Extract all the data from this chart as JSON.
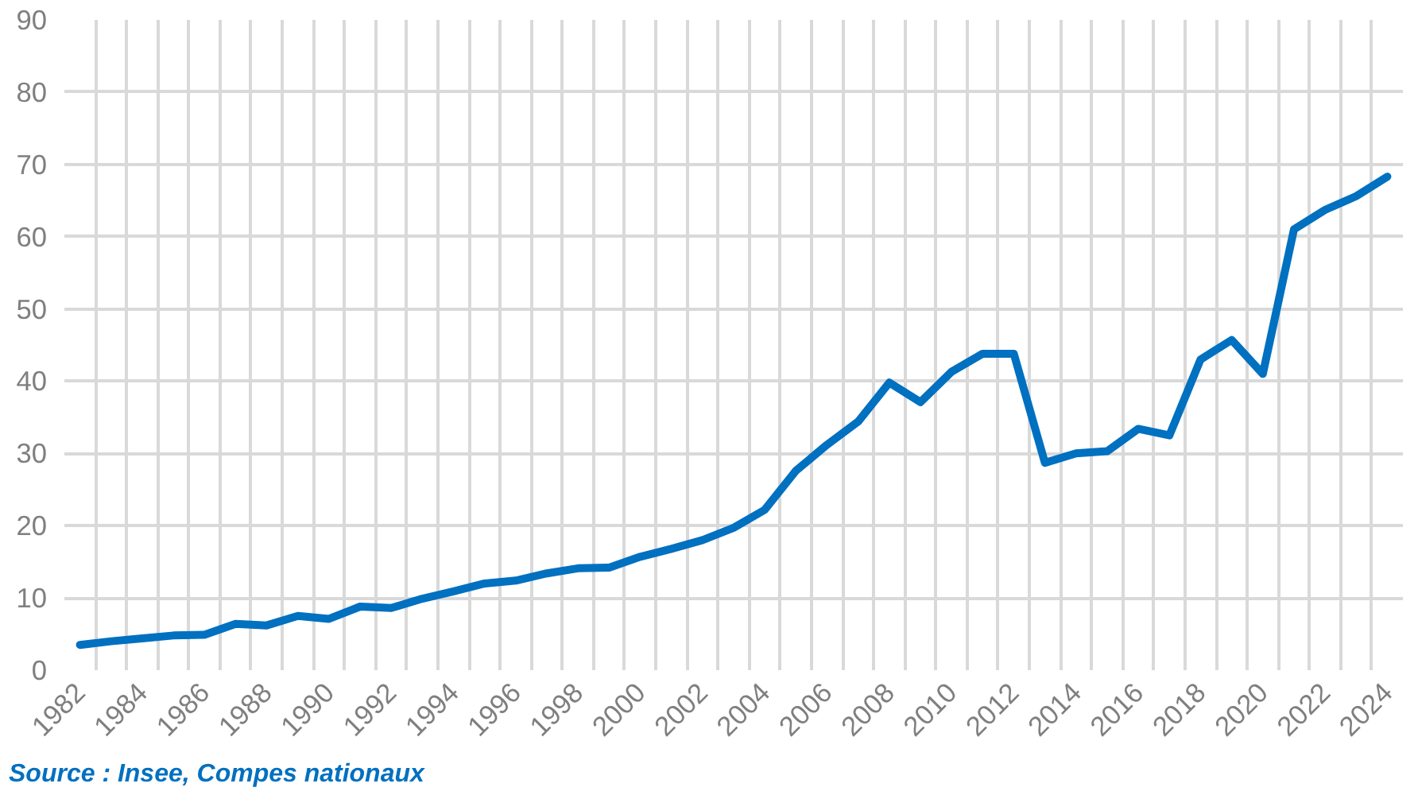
{
  "chart_data": {
    "type": "line",
    "categories": [
      "1982",
      null,
      "1984",
      null,
      "1986",
      null,
      "1988",
      null,
      "1990",
      null,
      "1992",
      null,
      "1994",
      null,
      "1996",
      null,
      "1998",
      null,
      "2000",
      null,
      "2002",
      null,
      "2004",
      null,
      "2006",
      null,
      "2008",
      null,
      "2010",
      null,
      "2012",
      null,
      "2014",
      null,
      "2016",
      null,
      "2018",
      null,
      "2020",
      null,
      "2022",
      null,
      "2024"
    ],
    "series": [
      {
        "color": "#0070c0",
        "values": [
          3.5,
          4.0,
          4.4,
          4.8,
          4.9,
          6.4,
          6.2,
          7.5,
          7.1,
          8.8,
          8.6,
          9.9,
          10.9,
          12.0,
          12.4,
          13.4,
          14.1,
          14.2,
          15.7,
          16.8,
          18.0,
          19.7,
          22.2,
          27.6,
          31.2,
          34.4,
          39.8,
          37.1,
          41.3,
          43.8,
          43.8,
          28.7,
          30.0,
          30.3,
          33.4,
          32.5,
          43.0,
          45.7,
          41.0,
          61.0,
          63.7,
          65.6,
          68.3
        ]
      }
    ],
    "ylim": [
      0,
      90
    ],
    "yticks": [
      0,
      10,
      20,
      30,
      40,
      50,
      60,
      70,
      80,
      90
    ],
    "grid": true,
    "annotations": [
      "Source : Insee, Compes nationaux"
    ]
  }
}
